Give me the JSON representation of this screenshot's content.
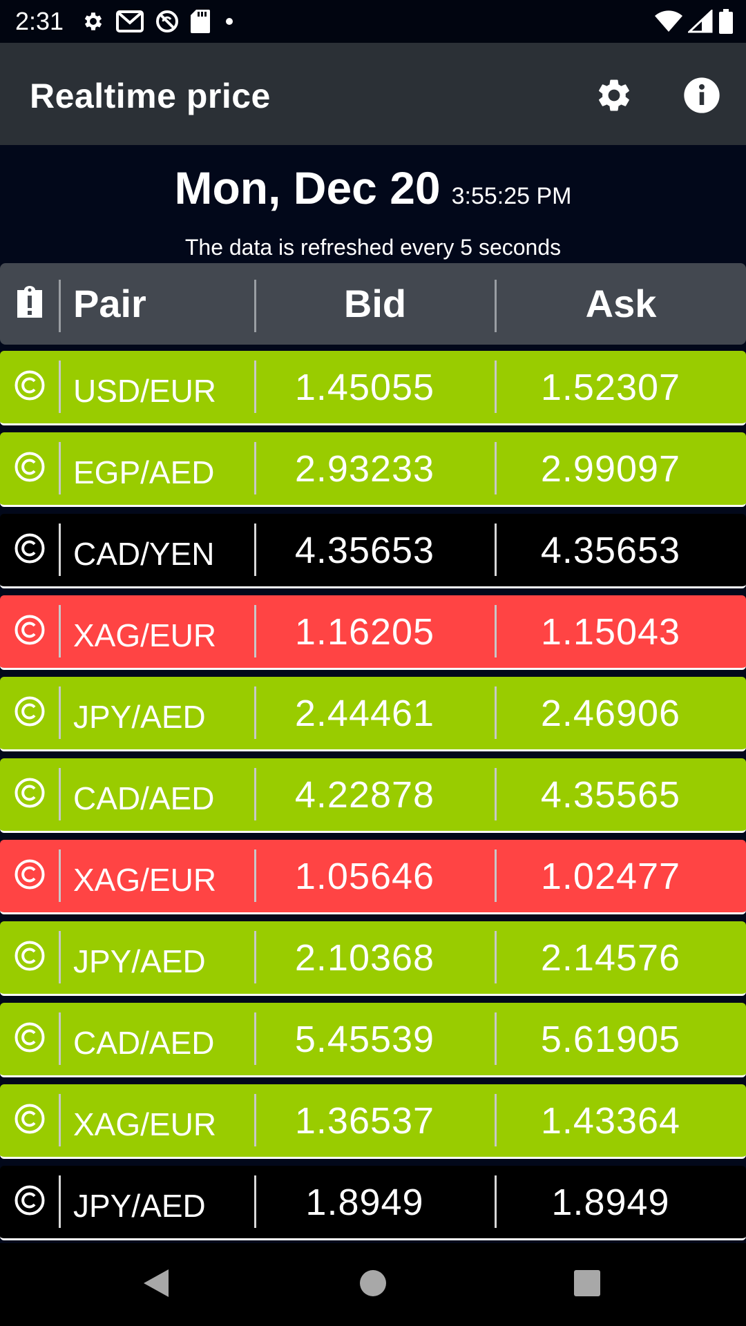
{
  "status_bar": {
    "time": "2:31",
    "left_icons": [
      "gear-icon",
      "gmail-icon",
      "sync-off-icon",
      "sd-card-icon",
      "dot-icon"
    ],
    "right_icons": [
      "wifi-icon",
      "cellular-signal-icon",
      "battery-icon"
    ]
  },
  "app_bar": {
    "title": "Realtime price",
    "actions": [
      "settings-icon",
      "info-icon"
    ]
  },
  "date_header": {
    "date": "Mon, Dec 20",
    "time": "3:55:25 PM",
    "refresh_note": "The data is refreshed every 5 seconds"
  },
  "table": {
    "header": {
      "icon": "clipboard-alert-icon",
      "pair": "Pair",
      "bid": "Bid",
      "ask": "Ask"
    },
    "colors": {
      "green": "#99cc00",
      "red": "#ff4444",
      "black": "#000000",
      "header": "#434850"
    },
    "rows": [
      {
        "pair": "USD/EUR",
        "bid": "1.45055",
        "ask": "1.52307",
        "status": "green"
      },
      {
        "pair": "EGP/AED",
        "bid": "2.93233",
        "ask": "2.99097",
        "status": "green"
      },
      {
        "pair": "CAD/YEN",
        "bid": "4.35653",
        "ask": "4.35653",
        "status": "black"
      },
      {
        "pair": "XAG/EUR",
        "bid": "1.16205",
        "ask": "1.15043",
        "status": "red"
      },
      {
        "pair": "JPY/AED",
        "bid": "2.44461",
        "ask": "2.46906",
        "status": "green"
      },
      {
        "pair": "CAD/AED",
        "bid": "4.22878",
        "ask": "4.35565",
        "status": "green"
      },
      {
        "pair": "XAG/EUR",
        "bid": "1.05646",
        "ask": "1.02477",
        "status": "red"
      },
      {
        "pair": "JPY/AED",
        "bid": "2.10368",
        "ask": "2.14576",
        "status": "green"
      },
      {
        "pair": "CAD/AED",
        "bid": "5.45539",
        "ask": "5.61905",
        "status": "green"
      },
      {
        "pair": "XAG/EUR",
        "bid": "1.36537",
        "ask": "1.43364",
        "status": "green"
      },
      {
        "pair": "JPY/AED",
        "bid": "1.8949",
        "ask": "1.8949",
        "status": "black"
      }
    ]
  },
  "nav_bar": {
    "buttons": [
      "back-icon",
      "home-icon",
      "recents-icon"
    ]
  }
}
